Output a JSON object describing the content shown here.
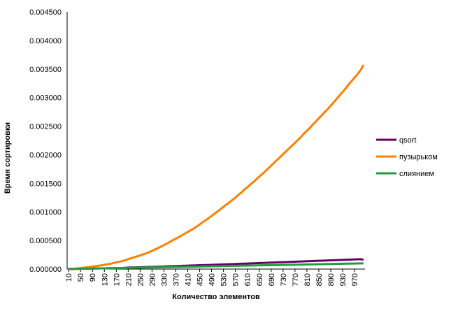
{
  "chart_data": {
    "type": "line",
    "title": "",
    "xlabel": "Количество элементов",
    "ylabel": "Время сортировки",
    "ylim": [
      0,
      0.0045
    ],
    "y_ticks": [
      "0.000000",
      "0.000500",
      "0.001000",
      "0.001500",
      "0.002000",
      "0.002500",
      "0.003000",
      "0.003500",
      "0.004000",
      "0.004500"
    ],
    "x_tick_labels": [
      "10",
      "50",
      "90",
      "130",
      "170",
      "210",
      "250",
      "290",
      "330",
      "370",
      "410",
      "450",
      "490",
      "530",
      "570",
      "610",
      "650",
      "690",
      "730",
      "770",
      "810",
      "850",
      "890",
      "930",
      "970"
    ],
    "grid": false,
    "legend_position": "right",
    "x": [
      10,
      20,
      30,
      40,
      50,
      60,
      70,
      80,
      90,
      100,
      110,
      120,
      130,
      140,
      150,
      160,
      170,
      180,
      190,
      200,
      210,
      220,
      230,
      240,
      250,
      260,
      270,
      280,
      290,
      300,
      310,
      320,
      330,
      340,
      350,
      360,
      370,
      380,
      390,
      400,
      410,
      420,
      430,
      440,
      450,
      460,
      470,
      480,
      490,
      500,
      510,
      520,
      530,
      540,
      550,
      560,
      570,
      580,
      590,
      600,
      610,
      620,
      630,
      640,
      650,
      660,
      670,
      680,
      690,
      700,
      710,
      720,
      730,
      740,
      750,
      760,
      770,
      780,
      790,
      800,
      810,
      820,
      830,
      840,
      850,
      860,
      870,
      880,
      890,
      900,
      910,
      920,
      930,
      940,
      950,
      960,
      970,
      980,
      990,
      1000
    ],
    "series": [
      {
        "name": "qsort",
        "color": "#660066",
        "values": [
          1e-06,
          2e-06,
          3e-06,
          4e-06,
          5e-06,
          6e-06,
          7e-06,
          8e-06,
          9e-06,
          1e-05,
          1.1e-05,
          1.2e-05,
          1.3e-05,
          1.4e-05,
          1.5e-05,
          1.6e-05,
          1.7e-05,
          1.8e-05,
          1.9e-05,
          2.1e-05,
          2.7e-05,
          2.8e-05,
          2.9e-05,
          3.1e-05,
          3.2e-05,
          3.4e-05,
          3.5e-05,
          3.7e-05,
          3.8e-05,
          4e-05,
          4.2e-05,
          4.3e-05,
          4.5e-05,
          4.7e-05,
          4.9e-05,
          5.1e-05,
          5.2e-05,
          5.4e-05,
          5.6e-05,
          5.8e-05,
          6e-05,
          6.2e-05,
          6.3e-05,
          6.5e-05,
          6.7e-05,
          6.9e-05,
          7.1e-05,
          7.2e-05,
          7.4e-05,
          7.6e-05,
          7.8e-05,
          8e-05,
          8.2e-05,
          8.4e-05,
          8.6e-05,
          8.7e-05,
          8.9e-05,
          9.1e-05,
          9.3e-05,
          9.5e-05,
          9.7e-05,
          9.9e-05,
          0.000101,
          0.000103,
          0.000105,
          0.000107,
          0.000109,
          0.000111,
          0.000113,
          0.000115,
          0.000117,
          0.000119,
          0.000121,
          0.000123,
          0.000125,
          0.000127,
          0.000129,
          0.000131,
          0.000133,
          0.000135,
          0.000137,
          0.000139,
          0.000141,
          0.000143,
          0.000145,
          0.000147,
          0.000149,
          0.000151,
          0.000153,
          0.000155,
          0.000157,
          0.000159,
          0.000161,
          0.000163,
          0.000165,
          0.000167,
          0.000169,
          0.000171,
          0.000173,
          0.000165
        ]
      },
      {
        "name": "пузырьком",
        "color": "#ff7f00",
        "values": [
          2e-06,
          4e-06,
          8e-06,
          1.2e-05,
          1.7e-05,
          2.4e-05,
          3.1e-05,
          3.7e-05,
          4.5e-05,
          5e-05,
          5.8e-05,
          6.5e-05,
          7.5e-05,
          8.4e-05,
          9.2e-05,
          0.000105,
          0.000118,
          0.000128,
          0.00014,
          0.000155,
          0.000172,
          0.00019,
          0.000205,
          0.000222,
          0.000238,
          0.000258,
          0.000275,
          0.000295,
          0.000318,
          0.000342,
          0.000367,
          0.000393,
          0.00042,
          0.000447,
          0.000475,
          0.000505,
          0.000532,
          0.00056,
          0.00059,
          0.00062,
          0.00065,
          0.00068,
          0.00071,
          0.000745,
          0.00078,
          0.00082,
          0.000855,
          0.00089,
          0.00093,
          0.00097,
          0.00101,
          0.00105,
          0.00109,
          0.00113,
          0.00117,
          0.00121,
          0.00125,
          0.0013,
          0.00134,
          0.00139,
          0.00143,
          0.00148,
          0.00152,
          0.00157,
          0.00162,
          0.00166,
          0.00171,
          0.00176,
          0.00181,
          0.00186,
          0.00191,
          0.00196,
          0.00201,
          0.00206,
          0.00211,
          0.00216,
          0.00221,
          0.00226,
          0.00231,
          0.00237,
          0.00242,
          0.00247,
          0.00253,
          0.00258,
          0.00264,
          0.00269,
          0.00275,
          0.0028,
          0.00286,
          0.00292,
          0.00298,
          0.00304,
          0.0031,
          0.00316,
          0.00323,
          0.00329,
          0.00335,
          0.00341,
          0.00348,
          0.00357
        ]
      },
      {
        "name": "слиянием",
        "color": "#1f9e3f",
        "values": [
          1e-06,
          2e-06,
          3e-06,
          4e-06,
          5e-06,
          6e-06,
          7e-06,
          8e-06,
          9e-06,
          1e-05,
          1.1e-05,
          1.2e-05,
          1.3e-05,
          1.4e-05,
          1.5e-05,
          1.6e-05,
          1.7e-05,
          1.8e-05,
          1.9e-05,
          2e-05,
          2.1e-05,
          2.2e-05,
          2.3e-05,
          2.4e-05,
          2.5e-05,
          2.6e-05,
          2.7e-05,
          2.8e-05,
          2.9e-05,
          3e-05,
          3.1e-05,
          3.2e-05,
          3.3e-05,
          3.4e-05,
          3.5e-05,
          3.6e-05,
          3.7e-05,
          3.8e-05,
          3.9e-05,
          4e-05,
          4.1e-05,
          4.2e-05,
          4.3e-05,
          4.4e-05,
          4.5e-05,
          4.6e-05,
          4.7e-05,
          4.8e-05,
          4.9e-05,
          5e-05,
          5.1e-05,
          5.2e-05,
          5.3e-05,
          5.4e-05,
          5.5e-05,
          5.6e-05,
          5.7e-05,
          5.8e-05,
          5.9e-05,
          6e-05,
          6.1e-05,
          6.2e-05,
          6.3e-05,
          6.4e-05,
          6.5e-05,
          6.6e-05,
          6.7e-05,
          6.8e-05,
          6.9e-05,
          7e-05,
          7.1e-05,
          7.2e-05,
          7.3e-05,
          7.4e-05,
          7.5e-05,
          7.6e-05,
          7.7e-05,
          7.8e-05,
          7.9e-05,
          8e-05,
          8.1e-05,
          8.2e-05,
          8.3e-05,
          8.4e-05,
          8.5e-05,
          8.6e-05,
          8.7e-05,
          8.8e-05,
          8.9e-05,
          9e-05,
          9.1e-05,
          9.2e-05,
          9.3e-05,
          9.4e-05,
          9.5e-05,
          9.6e-05,
          9.7e-05,
          9.8e-05,
          9.9e-05,
          0.0001
        ]
      }
    ]
  }
}
